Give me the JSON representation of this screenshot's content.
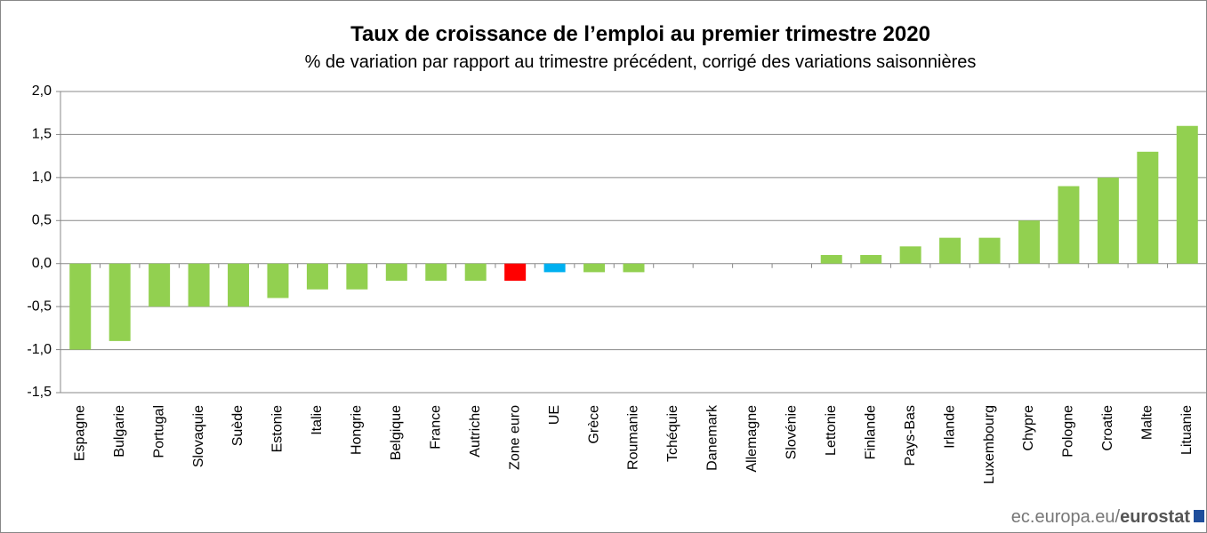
{
  "chart_data": {
    "type": "bar",
    "title": "Taux de croissance de l’emploi au premier trimestre 2020",
    "subtitle": "% de variation par rapport au trimestre précédent, corrigé des variations saisonnières",
    "source": "ec.europa.eu/",
    "source_brand": "eurostat",
    "categories": [
      "Espagne",
      "Bulgarie",
      "Portugal",
      "Slovaquie",
      "Suède",
      "Estonie",
      "Italie",
      "Hongrie",
      "Belgique",
      "France",
      "Autriche",
      "Zone euro",
      "UE",
      "Grèce",
      "Roumanie",
      "Tchéquie",
      "Danemark",
      "Allemagne",
      "Slovénie",
      "Lettonie",
      "Finlande",
      "Pays-Bas",
      "Irlande",
      "Luxembourg",
      "Chypre",
      "Pologne",
      "Croatie",
      "Malte",
      "Lituanie"
    ],
    "values": [
      -1.0,
      -0.9,
      -0.5,
      -0.5,
      -0.5,
      -0.4,
      -0.3,
      -0.3,
      -0.2,
      -0.2,
      -0.2,
      -0.2,
      -0.1,
      -0.1,
      -0.1,
      0,
      0,
      0,
      0,
      0.1,
      0.1,
      0.2,
      0.3,
      0.3,
      0.5,
      0.9,
      1.0,
      1.3,
      1.6
    ],
    "colors": [
      "#92d050",
      "#92d050",
      "#92d050",
      "#92d050",
      "#92d050",
      "#92d050",
      "#92d050",
      "#92d050",
      "#92d050",
      "#92d050",
      "#92d050",
      "#ff0000",
      "#00b0f0",
      "#92d050",
      "#92d050",
      "#92d050",
      "#92d050",
      "#92d050",
      "#92d050",
      "#92d050",
      "#92d050",
      "#92d050",
      "#92d050",
      "#92d050",
      "#92d050",
      "#92d050",
      "#92d050",
      "#92d050",
      "#92d050"
    ],
    "ylim": [
      -1.5,
      2.0
    ],
    "yticks": [
      {
        "value": -1.5,
        "label": "-1,5"
      },
      {
        "value": -1.0,
        "label": "-1,0"
      },
      {
        "value": -0.5,
        "label": "-0,5"
      },
      {
        "value": 0,
        "label": "0,0"
      },
      {
        "value": 0.5,
        "label": "0,5"
      },
      {
        "value": 1.0,
        "label": "1,0"
      },
      {
        "value": 1.5,
        "label": "1,5"
      },
      {
        "value": 2.0,
        "label": "2,0"
      }
    ],
    "grid": true
  }
}
